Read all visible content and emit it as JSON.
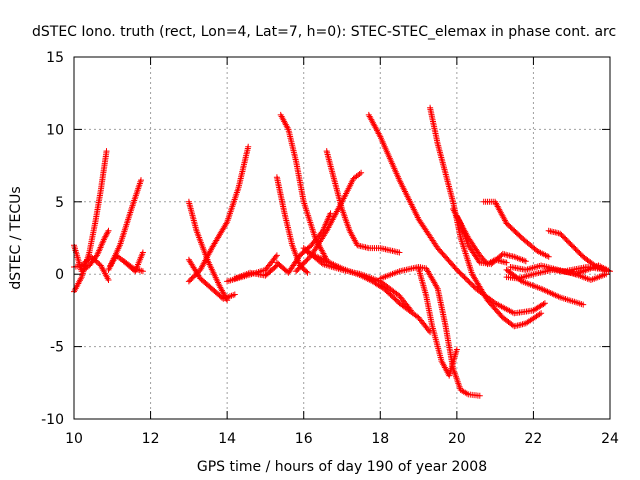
{
  "chart_data": {
    "type": "scatter",
    "title": "dSTEC Iono. truth (rect, Lon=4, Lat=7, h=0): STEC-STEC_elemax in phase cont. arc",
    "xlabel": "GPS time / hours of day 190 of year 2008",
    "ylabel": "dSTEC  / TECUs",
    "xlim": [
      10,
      24
    ],
    "ylim": [
      -10,
      15
    ],
    "x_ticks": [
      10,
      12,
      14,
      16,
      18,
      20,
      22,
      24
    ],
    "y_ticks": [
      -10,
      -5,
      0,
      5,
      10,
      15
    ],
    "grid": true,
    "marker": "+",
    "color": "#ff0000",
    "series": [
      {
        "x": [
          10.0,
          10.2,
          10.4,
          10.55,
          10.7,
          10.85
        ],
        "y": [
          -1.2,
          -0.2,
          1.5,
          3.5,
          5.8,
          8.5
        ]
      },
      {
        "x": [
          10.0,
          10.2,
          10.4,
          10.6,
          10.8,
          10.9
        ],
        "y": [
          2.0,
          0.2,
          0.6,
          1.3,
          2.5,
          3.0
        ]
      },
      {
        "x": [
          10.0,
          10.2,
          10.45,
          10.7,
          10.9
        ],
        "y": [
          0.5,
          0.6,
          1.2,
          0.6,
          -0.4
        ]
      },
      {
        "x": [
          10.95,
          11.2,
          11.5,
          11.75
        ],
        "y": [
          0.6,
          2.0,
          4.5,
          6.5
        ]
      },
      {
        "x": [
          10.9,
          11.1,
          11.3,
          11.6,
          11.8
        ],
        "y": [
          0.3,
          1.3,
          0.9,
          0.2,
          1.5
        ]
      },
      {
        "x": [
          11.3,
          11.55,
          11.8
        ],
        "y": [
          0.9,
          0.4,
          0.2
        ]
      },
      {
        "x": [
          13.0,
          13.2,
          13.5,
          13.8,
          14.0
        ],
        "y": [
          5.0,
          3.0,
          0.9,
          -0.8,
          -1.8
        ]
      },
      {
        "x": [
          13.0,
          13.3,
          13.6,
          13.9,
          14.2
        ],
        "y": [
          1.0,
          -0.3,
          -1.0,
          -1.7,
          -1.4
        ]
      },
      {
        "x": [
          13.0,
          13.3,
          13.6,
          14.0,
          14.3,
          14.55
        ],
        "y": [
          -0.5,
          0.3,
          1.8,
          3.6,
          6.0,
          8.8
        ]
      },
      {
        "x": [
          14.0,
          14.5,
          15.0,
          15.3
        ],
        "y": [
          -0.5,
          -0.1,
          0.3,
          1.3
        ]
      },
      {
        "x": [
          14.2,
          14.6,
          15.0,
          15.3
        ],
        "y": [
          -0.3,
          0.1,
          -0.1,
          0.6
        ]
      },
      {
        "x": [
          15.3,
          15.5,
          15.7,
          15.9,
          16.1
        ],
        "y": [
          6.7,
          4.2,
          2.0,
          0.6,
          0.1
        ]
      },
      {
        "x": [
          15.4,
          15.6,
          15.8,
          16.0,
          16.3,
          16.6
        ],
        "y": [
          11.0,
          10.0,
          7.8,
          5.0,
          2.5,
          1.0
        ]
      },
      {
        "x": [
          15.3,
          15.6,
          15.9,
          16.2,
          16.5,
          16.7
        ],
        "y": [
          0.8,
          0.1,
          1.3,
          2.0,
          3.0,
          4.2
        ]
      },
      {
        "x": [
          16.0,
          16.5,
          17.0,
          17.5,
          18.0,
          18.5,
          18.8
        ],
        "y": [
          1.8,
          0.7,
          0.3,
          0.0,
          -0.5,
          -1.5,
          -2.5
        ]
      },
      {
        "x": [
          16.1,
          16.6,
          17.0,
          17.5,
          17.8,
          18.1,
          18.5,
          19.0,
          19.3
        ],
        "y": [
          1.5,
          0.9,
          0.4,
          -0.1,
          -0.5,
          -1.0,
          -2.0,
          -3.0,
          -4.0
        ]
      },
      {
        "x": [
          15.8,
          16.2,
          16.6,
          17.0,
          17.3,
          17.5
        ],
        "y": [
          0.2,
          1.3,
          3.0,
          5.0,
          6.6,
          7.0
        ]
      },
      {
        "x": [
          16.6,
          16.8,
          17.0,
          17.2,
          17.4,
          17.7,
          18.0,
          18.5
        ],
        "y": [
          8.5,
          6.5,
          4.5,
          3.0,
          2.0,
          1.8,
          1.8,
          1.5
        ]
      },
      {
        "x": [
          17.7,
          18.0,
          18.5,
          19.0,
          19.5,
          20.0,
          20.5,
          21.0,
          21.5,
          22.0,
          22.3
        ],
        "y": [
          11.0,
          9.5,
          6.5,
          3.8,
          1.8,
          0.3,
          -1.0,
          -2.0,
          -2.7,
          -2.5,
          -2.0
        ]
      },
      {
        "x": [
          18.0,
          18.5,
          19.0,
          19.2,
          19.5,
          19.7,
          19.9,
          20.1,
          20.3,
          20.6
        ],
        "y": [
          -0.3,
          0.2,
          0.5,
          0.4,
          -1.0,
          -3.5,
          -6.5,
          -8.0,
          -8.3,
          -8.4
        ]
      },
      {
        "x": [
          19.0,
          19.2,
          19.35,
          19.45,
          19.6,
          19.8,
          20.0
        ],
        "y": [
          0.4,
          -1.5,
          -3.5,
          -4.5,
          -6.0,
          -7.0,
          -5.2
        ]
      },
      {
        "x": [
          19.3,
          19.5,
          19.7,
          19.9,
          20.1,
          20.4,
          20.8,
          21.2,
          21.5,
          21.8,
          22.2
        ],
        "y": [
          11.5,
          9.0,
          7.0,
          5.0,
          2.5,
          0.0,
          -1.8,
          -3.0,
          -3.6,
          -3.4,
          -2.7
        ]
      },
      {
        "x": [
          19.9,
          20.1,
          20.3,
          20.6,
          20.9,
          21.2,
          21.5,
          21.8
        ],
        "y": [
          4.5,
          3.5,
          2.0,
          0.8,
          0.7,
          1.4,
          1.2,
          0.9
        ]
      },
      {
        "x": [
          20.0,
          20.3,
          20.6,
          20.8,
          21.0,
          21.3
        ],
        "y": [
          4.0,
          2.5,
          1.3,
          0.7,
          1.0,
          0.8
        ]
      },
      {
        "x": [
          20.7,
          21.0,
          21.3,
          21.7,
          22.1,
          22.4
        ],
        "y": [
          5.0,
          5.0,
          3.5,
          2.5,
          1.6,
          1.2
        ]
      },
      {
        "x": [
          21.3,
          21.7,
          22.2,
          22.7,
          23.3
        ],
        "y": [
          0.3,
          -0.5,
          -1.0,
          -1.6,
          -2.1
        ]
      },
      {
        "x": [
          21.3,
          21.6,
          22.0,
          22.5,
          23.0,
          23.5,
          23.9
        ],
        "y": [
          -0.2,
          -0.3,
          0.0,
          0.3,
          0.1,
          -0.4,
          0.0
        ]
      },
      {
        "x": [
          21.4,
          21.8,
          22.2,
          22.8,
          23.4,
          23.9
        ],
        "y": [
          0.5,
          0.3,
          0.6,
          0.2,
          0.5,
          0.3
        ]
      },
      {
        "x": [
          22.4,
          22.7,
          23.0,
          23.3,
          23.6,
          23.9
        ],
        "y": [
          3.0,
          2.8,
          2.0,
          1.2,
          0.6,
          0.2
        ]
      },
      {
        "x": [
          22.8,
          23.1,
          23.4,
          23.7,
          24.0
        ],
        "y": [
          0.2,
          0.0,
          0.3,
          0.6,
          0.2
        ]
      }
    ]
  }
}
